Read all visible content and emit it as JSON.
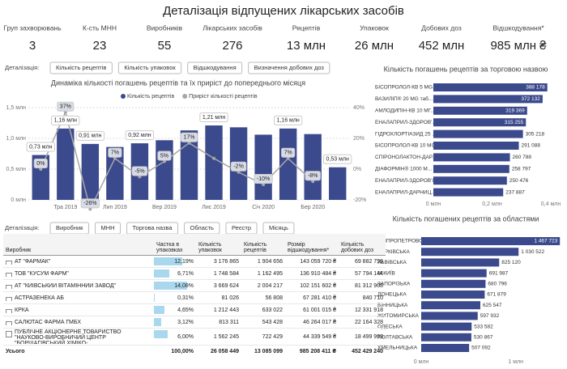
{
  "title": "Деталізація відпущених лікарських засобів",
  "kpis": [
    {
      "label": "Груп захворювань",
      "value": "3"
    },
    {
      "label": "К-сть МНН",
      "value": "23"
    },
    {
      "label": "Виробників",
      "value": "55"
    },
    {
      "label": "Лікарських засобів",
      "value": "276"
    },
    {
      "label": "Рецептів",
      "value": "13 млн"
    },
    {
      "label": "Упаковок",
      "value": "26 млн"
    },
    {
      "label": "Добових доз",
      "value": "452 млн"
    },
    {
      "label": "Відшкодування*",
      "value": "985 млн ₴"
    }
  ],
  "filters": [
    {
      "label": "Деталізація:",
      "buttons": [
        "Кількість рецептів",
        "Кількість упаковок",
        "Відшкодування",
        "Визначення добових доз"
      ]
    },
    {
      "label": "Деталізація:",
      "buttons": [
        "Виробник",
        "МНН",
        "Торгова назва",
        "Область",
        "Реєстр",
        "Місяць"
      ]
    }
  ],
  "table": {
    "columns": [
      "Виробник",
      "Частка в упаковках",
      "Кількість упаковок",
      "Кількість рецептів",
      "Розмір відшкодування*",
      "Кількість добових доз"
    ],
    "rows": [
      {
        "cells": [
          "АТ \"ФАРМАК\"",
          "12,19%",
          "3 176 865",
          "1 904 656",
          "143 059 720 ₴",
          "69 882 759"
        ],
        "share": 12.19
      },
      {
        "cells": [
          "ТОВ \"КУСУМ ФАРМ\"",
          "6,71%",
          "1 748 584",
          "1 162 495",
          "136 910 484 ₴",
          "57 794 144"
        ],
        "share": 6.71
      },
      {
        "cells": [
          "АТ \"КИЇВСЬКИЙ ВІТАМІННИЙ ЗАВОД\"",
          "14,08%",
          "3 669 624",
          "2 004 217",
          "102 151 602 ₴",
          "81 312 908"
        ],
        "share": 14.08
      },
      {
        "cells": [
          "АСТРАЗЕНЕКА АБ",
          "0,31%",
          "81 026",
          "56 808",
          "67 281 410 ₴",
          "840 710"
        ],
        "share": 0.31
      },
      {
        "cells": [
          "КРКА",
          "4,65%",
          "1 212 443",
          "633 022",
          "61 001 015 ₴",
          "12 331 918"
        ],
        "share": 4.65
      },
      {
        "cells": [
          "САЛЮТАС ФАРМА ГМБХ",
          "3,12%",
          "813 311",
          "543 428",
          "46 264 017 ₴",
          "22 164 328"
        ],
        "share": 3.12
      },
      {
        "cells": [
          "ПУБЛІЧНЕ АКЦІОНЕРНЕ ТОВАРИСТВО \"НАУКОВО-ВИРОБНИЧИЙ ЦЕНТР \"БОРЩАГІВСЬКИЙ ХІМІКО-",
          "6,00%",
          "1 562 245",
          "722 429",
          "44 339 549 ₴",
          "18 499 999"
        ],
        "share": 6.0
      }
    ],
    "total": [
      "Усього",
      "100,00%",
      "26 058 449",
      "13 085 099",
      "985 208 411 ₴",
      "452 429 240"
    ]
  },
  "chart_data": [
    {
      "type": "combo",
      "title": "Динаміка кількості погашень рецептів та їх приріст до попереднього місяця",
      "categories": [
        null,
        "Тра 2019",
        null,
        "Лип 2019",
        null,
        "Вер 2019",
        null,
        "Лис 2019",
        null,
        "Січ 2020",
        null,
        "Бер 2020",
        null
      ],
      "series": [
        {
          "name": "Кількість рецептів",
          "type": "bar",
          "color": "#3b4a8d",
          "values": [
            0.73,
            1.16,
            0.91,
            0.86,
            0.92,
            0.97,
            1.13,
            1.21,
            1.18,
            1.06,
            1.16,
            1.07,
            0.53
          ],
          "value_labels": [
            "0,73 млн",
            "1,16 млн",
            "0,91 млн",
            null,
            "0,92 млн",
            null,
            null,
            "1,21 млн",
            null,
            null,
            "1,16 млн",
            null,
            "0,53 млн"
          ]
        },
        {
          "name": "Приріст кількості рецептів",
          "type": "line",
          "axis": "y2",
          "color": "#a6a6a6",
          "values": [
            0,
            37,
            -26,
            7,
            -5,
            5,
            17,
            7,
            -2,
            -10,
            7,
            -8,
            null
          ],
          "value_labels": [
            "0%",
            "37%",
            "-26%",
            "7%",
            "-5%",
            "5%",
            "17%",
            null,
            "-2%",
            "-10%",
            "7%",
            "-8%",
            null
          ]
        }
      ],
      "ylim": [
        0,
        1.5
      ],
      "yticks": [
        {
          "value": 0,
          "label": "0 млн"
        },
        {
          "value": 0.5,
          "label": "0,5 млн"
        },
        {
          "value": 1.0,
          "label": "1,0 млн"
        },
        {
          "value": 1.5,
          "label": "1,5 млн"
        }
      ],
      "y2lim": [
        -20,
        40
      ],
      "y2ticks": [
        {
          "value": -20,
          "label": "-20%"
        },
        {
          "value": 0,
          "label": "0%"
        },
        {
          "value": 20,
          "label": "20%"
        },
        {
          "value": 40,
          "label": "40%"
        }
      ],
      "grid": true
    },
    {
      "type": "barh",
      "title": "Кількість погашень рецептів за торговою назвою",
      "color": "#3b4a8d",
      "categories": [
        "БІСОПРОЛОЛ-КВ 5 MG...",
        "ВАЗИЛІП® 20 MG таб...",
        "АМЛОДИПІН-КВ 10 МГ...",
        "ЕНАЛАПРИЛ-ЗДОРОВ'...",
        "ГІДРОХЛОРТІАЗИД 25 ...",
        "БІСОПРОЛОЛ-КВ 10 MG...",
        "СПІРОНОЛАКТОН-ДАР...",
        "ДІАФОРМІН® 1000 M...",
        "ЕНАЛАПРИЛ-ЗДОРОВ'Я...",
        "ЕНАЛАПРИЛ-ДАРНИЦ..."
      ],
      "values": [
        388178,
        372132,
        319369,
        315255,
        305218,
        291088,
        260788,
        258797,
        250476,
        237887
      ],
      "value_labels": [
        "388 178",
        "372 132",
        "319 369",
        "315 255",
        "305 218",
        "291 088",
        "260 788",
        "258 797",
        "250 476",
        "237 887"
      ],
      "xlim": [
        0,
        400000
      ],
      "xticks": [
        {
          "value": 0,
          "label": "0 млн"
        },
        {
          "value": 200000,
          "label": "0,2 млн"
        },
        {
          "value": 400000,
          "label": "0,4 млн"
        }
      ]
    },
    {
      "type": "barh",
      "title": "Кількість погашених рецептів за областями",
      "color": "#3b4a8d",
      "categories": [
        "ДНІПРОПЕТРОВСЬКА",
        "ХАРКІВСЬКА",
        "ЛЬВІВСЬКА",
        "М.КИЇВ",
        "ЗАПОРІЗЬКА",
        "ДОНЕЦЬКА",
        "ВІННИЦЬКА",
        "ЖИТОМИРСЬКА",
        "ОДЕСЬКА",
        "ПОЛТАВСЬКА",
        "ХМЕЛЬНИЦЬКА"
      ],
      "values": [
        1467723,
        1030522,
        825120,
        691987,
        680796,
        671879,
        625547,
        597932,
        533582,
        530867,
        507092
      ],
      "value_labels": [
        "1 467 723",
        "1 030 522",
        "825 120",
        "691 987",
        "680 796",
        "671 879",
        "625 547",
        "597 932",
        "533 582",
        "530 867",
        "507 092"
      ],
      "xlim": [
        0,
        1500000
      ],
      "xticks": [
        {
          "value": 0,
          "label": "0 млн"
        },
        {
          "value": 1000000,
          "label": "1 млн"
        }
      ]
    }
  ]
}
